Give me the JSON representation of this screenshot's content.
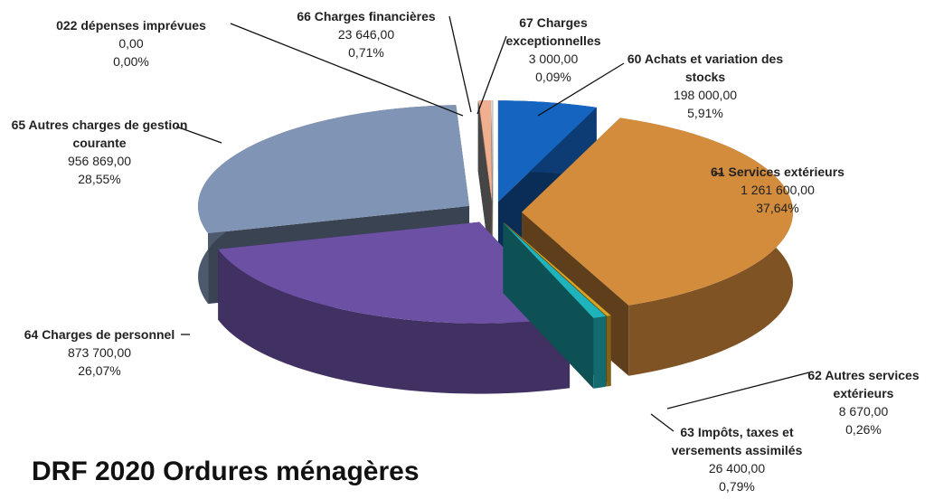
{
  "chart_data": {
    "type": "pie",
    "title": "DRF 2020 Ordures ménagères",
    "categories": [
      "60 Achats et variation des stocks",
      "61 Services extérieurs",
      "62 Autres services extérieurs",
      "63 Impôts, taxes et versements assimilés",
      "64 Charges de personnel",
      "65 Autres charges de gestion courante",
      "022 dépenses imprévues",
      "66 Charges financières",
      "67 Charges exceptionnelles"
    ],
    "values": [
      198000,
      1261600,
      8670,
      26400,
      873700,
      956869,
      0,
      23646,
      3000
    ],
    "value_labels": [
      "198 000,00",
      "1 261 600,00",
      "8 670,00",
      "26 400,00",
      "873 700,00",
      "956 869,00",
      "0,00",
      "23 646,00",
      "3 000,00"
    ],
    "percents": [
      5.91,
      37.64,
      0.26,
      0.79,
      26.07,
      28.55,
      0,
      0.71,
      0.09
    ],
    "percent_labels": [
      "5,91%",
      "37,64%",
      "0,26%",
      "0,79%",
      "26,07%",
      "28,55%",
      "0,00%",
      "0,71%",
      "0,09%"
    ],
    "colors": [
      "#1464c0",
      "#d38b3c",
      "#d9a326",
      "#1fb3bb",
      "#6c50a4",
      "#8094b5",
      "#999999",
      "#f0b090",
      "#c8c8c8"
    ]
  }
}
